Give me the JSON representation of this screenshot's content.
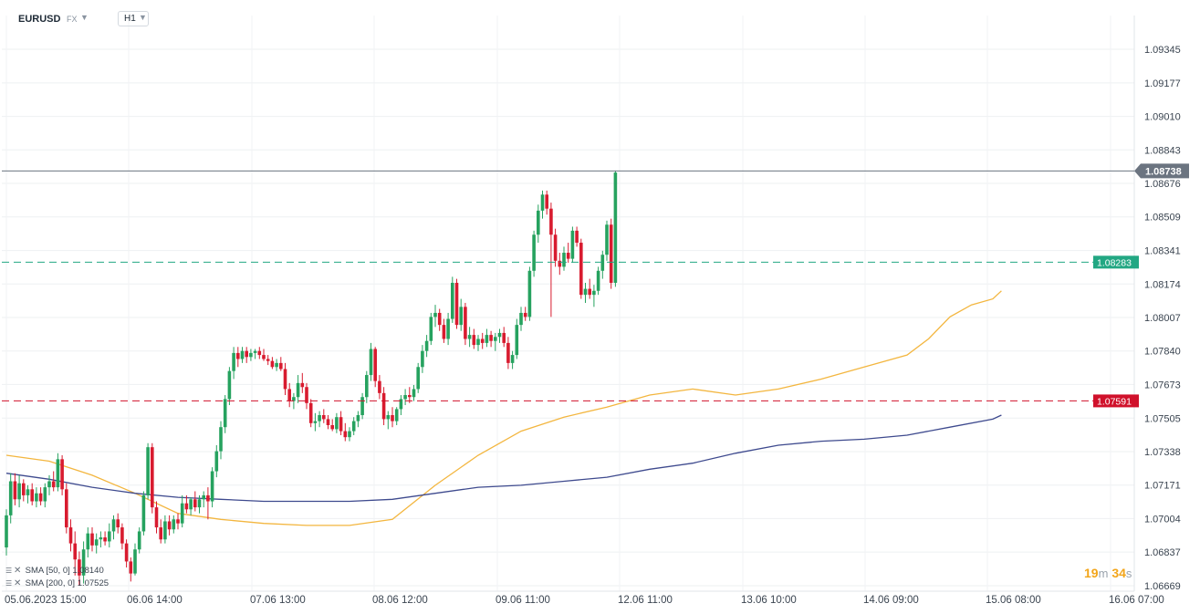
{
  "header": {
    "symbol": "EURUSD",
    "market": "FX",
    "timeframe": "H1"
  },
  "price_tags": {
    "current": "1.08738",
    "green_line": "1.08283",
    "red_line": "1.07591"
  },
  "indicators": [
    {
      "label": "SMA [50, 0]",
      "value": "1.08140"
    },
    {
      "label": "SMA [200, 0]",
      "value": "1.07525"
    }
  ],
  "countdown": {
    "minutes": "19",
    "min_unit": "m",
    "seconds": "34",
    "sec_unit": "s"
  },
  "colors": {
    "bull": "#26a25f",
    "bear": "#d81b2f",
    "sma50": "#f3b63f",
    "sma200": "#3e4a8e",
    "green_line": "#22a783",
    "red_line": "#d0112b",
    "current_line": "#6b7480"
  },
  "chart_data": {
    "type": "candlestick",
    "symbol": "EURUSD",
    "timeframe": "H1",
    "y_ticks": [
      "1.09345",
      "1.09177",
      "1.09010",
      "1.08843",
      "1.08676",
      "1.08509",
      "1.08341",
      "1.08174",
      "1.08007",
      "1.07840",
      "1.07673",
      "1.07505",
      "1.07338",
      "1.07171",
      "1.07004",
      "1.06837",
      "1.06669"
    ],
    "ylim": [
      1.06669,
      1.09345
    ],
    "x_ticks": [
      "05.06.2023  15:00",
      "06.06  14:00",
      "07.06  13:00",
      "08.06  12:00",
      "09.06  11:00",
      "12.06  11:00",
      "13.06  10:00",
      "14.06  09:00",
      "15.06  08:00",
      "16.06  07:00"
    ],
    "x_index_range": [
      0,
      240
    ],
    "horizontal_lines": [
      {
        "price": 1.08738,
        "style": "solid",
        "color": "#6b7480"
      },
      {
        "price": 1.08283,
        "style": "dashed",
        "color": "#22a783"
      },
      {
        "price": 1.07591,
        "style": "dashed",
        "color": "#d0112b"
      }
    ],
    "candles_ohlc": [
      [
        1.0686,
        1.0705,
        1.0682,
        1.0702
      ],
      [
        1.0702,
        1.0723,
        1.0698,
        1.0719
      ],
      [
        1.0719,
        1.0723,
        1.0707,
        1.071
      ],
      [
        1.071,
        1.0722,
        1.0706,
        1.0718
      ],
      [
        1.0718,
        1.072,
        1.0709,
        1.0712
      ],
      [
        1.0712,
        1.0717,
        1.0708,
        1.0715
      ],
      [
        1.0715,
        1.0718,
        1.0707,
        1.0709
      ],
      [
        1.0709,
        1.0716,
        1.0706,
        1.0713
      ],
      [
        1.0713,
        1.0716,
        1.0707,
        1.0709
      ],
      [
        1.0709,
        1.0718,
        1.0706,
        1.0716
      ],
      [
        1.0716,
        1.0722,
        1.0712,
        1.0719
      ],
      [
        1.0719,
        1.0724,
        1.0714,
        1.0716
      ],
      [
        1.0716,
        1.0733,
        1.0714,
        1.073
      ],
      [
        1.073,
        1.0732,
        1.0712,
        1.0715
      ],
      [
        1.0715,
        1.0718,
        1.0693,
        1.0696
      ],
      [
        1.0696,
        1.07,
        1.0684,
        1.0688
      ],
      [
        1.0688,
        1.0694,
        1.0672,
        1.068
      ],
      [
        1.068,
        1.0684,
        1.0667,
        1.0672
      ],
      [
        1.0672,
        1.0689,
        1.0668,
        1.0685
      ],
      [
        1.0685,
        1.0696,
        1.0681,
        1.0693
      ],
      [
        1.0693,
        1.0696,
        1.0684,
        1.0687
      ],
      [
        1.0687,
        1.0693,
        1.0683,
        1.069
      ],
      [
        1.069,
        1.0694,
        1.0686,
        1.0691
      ],
      [
        1.0691,
        1.0694,
        1.0687,
        1.0689
      ],
      [
        1.0689,
        1.0698,
        1.0686,
        1.0694
      ],
      [
        1.0694,
        1.0702,
        1.069,
        1.07
      ],
      [
        1.07,
        1.0703,
        1.0693,
        1.0696
      ],
      [
        1.0696,
        1.0698,
        1.0685,
        1.0688
      ],
      [
        1.0688,
        1.069,
        1.0676,
        1.0679
      ],
      [
        1.0679,
        1.0681,
        1.0669,
        1.0673
      ],
      [
        1.0673,
        1.0688,
        1.0672,
        1.0685
      ],
      [
        1.0685,
        1.0696,
        1.0683,
        1.0694
      ],
      [
        1.0694,
        1.0714,
        1.0692,
        1.0712
      ],
      [
        1.0712,
        1.0738,
        1.071,
        1.0736
      ],
      [
        1.0736,
        1.0738,
        1.0703,
        1.0706
      ],
      [
        1.0706,
        1.0709,
        1.0693,
        1.0696
      ],
      [
        1.0696,
        1.07,
        1.0688,
        1.069
      ],
      [
        1.069,
        1.0702,
        1.0688,
        1.0699
      ],
      [
        1.0699,
        1.0702,
        1.0692,
        1.0695
      ],
      [
        1.0695,
        1.0702,
        1.0693,
        1.07
      ],
      [
        1.07,
        1.0703,
        1.0695,
        1.0698
      ],
      [
        1.0698,
        1.0712,
        1.0696,
        1.0708
      ],
      [
        1.0708,
        1.0712,
        1.0703,
        1.0705
      ],
      [
        1.0705,
        1.0711,
        1.0702,
        1.071
      ],
      [
        1.071,
        1.0714,
        1.0704,
        1.0706
      ],
      [
        1.0706,
        1.0712,
        1.0703,
        1.071
      ],
      [
        1.071,
        1.0714,
        1.0706,
        1.0712
      ],
      [
        1.0712,
        1.0716,
        1.07,
        1.0709
      ],
      [
        1.0709,
        1.0726,
        1.0706,
        1.0724
      ],
      [
        1.0724,
        1.0737,
        1.0721,
        1.0734
      ],
      [
        1.0734,
        1.0749,
        1.073,
        1.0746
      ],
      [
        1.0746,
        1.0762,
        1.0743,
        1.076
      ],
      [
        1.076,
        1.0776,
        1.0757,
        1.0774
      ],
      [
        1.0774,
        1.0786,
        1.077,
        1.0783
      ],
      [
        1.0783,
        1.0786,
        1.0776,
        1.078
      ],
      [
        1.078,
        1.0786,
        1.0778,
        1.0784
      ],
      [
        1.0784,
        1.0786,
        1.0778,
        1.0781
      ],
      [
        1.0781,
        1.0785,
        1.0779,
        1.0783
      ],
      [
        1.0783,
        1.0785,
        1.078,
        1.0784
      ],
      [
        1.0784,
        1.0786,
        1.078,
        1.0782
      ],
      [
        1.0782,
        1.0785,
        1.0779,
        1.078
      ],
      [
        1.078,
        1.0782,
        1.0777,
        1.0779
      ],
      [
        1.0779,
        1.0781,
        1.0775,
        1.0776
      ],
      [
        1.0776,
        1.078,
        1.0774,
        1.0778
      ],
      [
        1.0778,
        1.0781,
        1.0774,
        1.0775
      ],
      [
        1.0775,
        1.0778,
        1.0762,
        1.0765
      ],
      [
        1.0765,
        1.0768,
        1.0756,
        1.0759
      ],
      [
        1.0759,
        1.0763,
        1.0755,
        1.0761
      ],
      [
        1.0761,
        1.0772,
        1.0758,
        1.0768
      ],
      [
        1.0768,
        1.0773,
        1.0763,
        1.0766
      ],
      [
        1.0766,
        1.0768,
        1.0755,
        1.0758
      ],
      [
        1.0758,
        1.076,
        1.0746,
        1.0748
      ],
      [
        1.0748,
        1.0753,
        1.0744,
        1.0749
      ],
      [
        1.0749,
        1.0754,
        1.0746,
        1.0752
      ],
      [
        1.0752,
        1.0755,
        1.0748,
        1.075
      ],
      [
        1.075,
        1.0752,
        1.0745,
        1.0747
      ],
      [
        1.0747,
        1.075,
        1.0744,
        1.0745
      ],
      [
        1.0745,
        1.0753,
        1.0743,
        1.0751
      ],
      [
        1.0751,
        1.0754,
        1.0742,
        1.0744
      ],
      [
        1.0744,
        1.0748,
        1.0739,
        1.0741
      ],
      [
        1.0741,
        1.0746,
        1.0739,
        1.0744
      ],
      [
        1.0744,
        1.0751,
        1.0742,
        1.0749
      ],
      [
        1.0749,
        1.0754,
        1.0746,
        1.0752
      ],
      [
        1.0752,
        1.0763,
        1.075,
        1.0761
      ],
      [
        1.0761,
        1.0774,
        1.0758,
        1.0772
      ],
      [
        1.0772,
        1.0788,
        1.0769,
        1.0785
      ],
      [
        1.0785,
        1.0786,
        1.0766,
        1.0769
      ],
      [
        1.0769,
        1.0772,
        1.076,
        1.0763
      ],
      [
        1.0763,
        1.0766,
        1.0747,
        1.075
      ],
      [
        1.075,
        1.0754,
        1.0745,
        1.0752
      ],
      [
        1.0752,
        1.0756,
        1.0746,
        1.0749
      ],
      [
        1.0749,
        1.0756,
        1.0747,
        1.0755
      ],
      [
        1.0755,
        1.0762,
        1.0752,
        1.076
      ],
      [
        1.076,
        1.0765,
        1.0757,
        1.0762
      ],
      [
        1.0762,
        1.0766,
        1.0758,
        1.0761
      ],
      [
        1.0761,
        1.0767,
        1.0759,
        1.0765
      ],
      [
        1.0765,
        1.0778,
        1.0763,
        1.0776
      ],
      [
        1.0776,
        1.0787,
        1.0773,
        1.0784
      ],
      [
        1.0784,
        1.0792,
        1.0781,
        1.0789
      ],
      [
        1.0789,
        1.0803,
        1.0787,
        1.0801
      ],
      [
        1.0801,
        1.0807,
        1.0796,
        1.0803
      ],
      [
        1.0803,
        1.0805,
        1.0794,
        1.0797
      ],
      [
        1.0797,
        1.08,
        1.0788,
        1.079
      ],
      [
        1.079,
        1.0803,
        1.0787,
        1.08
      ],
      [
        1.08,
        1.0821,
        1.0798,
        1.0818
      ],
      [
        1.0818,
        1.082,
        1.0795,
        1.0797
      ],
      [
        1.0797,
        1.081,
        1.0794,
        1.0806
      ],
      [
        1.0806,
        1.0808,
        1.0787,
        1.079
      ],
      [
        1.079,
        1.0796,
        1.0786,
        1.0792
      ],
      [
        1.0792,
        1.0795,
        1.0785,
        1.0787
      ],
      [
        1.0787,
        1.0792,
        1.0784,
        1.079
      ],
      [
        1.079,
        1.0793,
        1.0785,
        1.0788
      ],
      [
        1.0788,
        1.0795,
        1.0786,
        1.0792
      ],
      [
        1.0792,
        1.0794,
        1.0786,
        1.0789
      ],
      [
        1.0789,
        1.0793,
        1.0784,
        1.0791
      ],
      [
        1.0791,
        1.0795,
        1.0788,
        1.0793
      ],
      [
        1.0793,
        1.0796,
        1.0786,
        1.0788
      ],
      [
        1.0788,
        1.0791,
        1.0775,
        1.0778
      ],
      [
        1.0778,
        1.0784,
        1.0775,
        1.0782
      ],
      [
        1.0782,
        1.08,
        1.078,
        1.0797
      ],
      [
        1.0797,
        1.0806,
        1.0794,
        1.0803
      ],
      [
        1.0803,
        1.0806,
        1.0799,
        1.0801
      ],
      [
        1.0801,
        1.0826,
        1.0799,
        1.0824
      ],
      [
        1.0824,
        1.0844,
        1.0821,
        1.0842
      ],
      [
        1.0842,
        1.0857,
        1.0838,
        1.0854
      ],
      [
        1.0854,
        1.0864,
        1.085,
        1.0862
      ],
      [
        1.0862,
        1.0864,
        1.0852,
        1.0855
      ],
      [
        1.0855,
        1.0858,
        1.0801,
        1.0842
      ],
      [
        1.0842,
        1.0845,
        1.0826,
        1.0829
      ],
      [
        1.0829,
        1.0833,
        1.0822,
        1.0826
      ],
      [
        1.0826,
        1.0836,
        1.0824,
        1.0833
      ],
      [
        1.0833,
        1.0838,
        1.0828,
        1.083
      ],
      [
        1.083,
        1.0846,
        1.0828,
        1.0844
      ],
      [
        1.0844,
        1.0846,
        1.0836,
        1.0838
      ],
      [
        1.0838,
        1.084,
        1.081,
        1.0812
      ],
      [
        1.0812,
        1.0818,
        1.0808,
        1.0815
      ],
      [
        1.0815,
        1.082,
        1.081,
        1.0812
      ],
      [
        1.0812,
        1.0817,
        1.0806,
        1.0814
      ],
      [
        1.0814,
        1.0826,
        1.0812,
        1.0824
      ],
      [
        1.0824,
        1.0834,
        1.082,
        1.0832
      ],
      [
        1.0832,
        1.0849,
        1.0829,
        1.0847
      ],
      [
        1.0847,
        1.085,
        1.0815,
        1.0818
      ],
      [
        1.0818,
        1.0874,
        1.0816,
        1.0873
      ]
    ],
    "series": [
      {
        "name": "SMA [50, 0]",
        "color": "#f3b63f",
        "x": [
          0,
          10,
          20,
          30,
          40,
          50,
          60,
          70,
          80,
          90,
          100,
          110,
          120,
          130,
          140,
          150,
          160,
          170,
          180,
          190,
          200,
          210,
          215,
          220,
          225,
          230,
          232
        ],
        "y": [
          1.0732,
          1.0729,
          1.0722,
          1.0713,
          1.0703,
          1.07,
          1.0698,
          1.0697,
          1.0697,
          1.07,
          1.0717,
          1.0732,
          1.0744,
          1.0751,
          1.0756,
          1.0762,
          1.0765,
          1.0762,
          1.0765,
          1.077,
          1.0776,
          1.0782,
          1.079,
          1.0801,
          1.0807,
          1.081,
          1.0814
        ]
      },
      {
        "name": "SMA [200, 0]",
        "color": "#3e4a8e",
        "x": [
          0,
          10,
          20,
          30,
          40,
          50,
          60,
          70,
          80,
          90,
          100,
          110,
          120,
          130,
          140,
          150,
          160,
          170,
          180,
          190,
          200,
          210,
          220,
          230,
          232
        ],
        "y": [
          1.0723,
          1.072,
          1.0716,
          1.0713,
          1.0711,
          1.071,
          1.0709,
          1.0709,
          1.0709,
          1.071,
          1.0713,
          1.0716,
          1.0717,
          1.0719,
          1.0721,
          1.0725,
          1.0728,
          1.0733,
          1.0737,
          1.0739,
          1.074,
          1.0742,
          1.0746,
          1.075,
          1.0752
        ]
      }
    ]
  }
}
